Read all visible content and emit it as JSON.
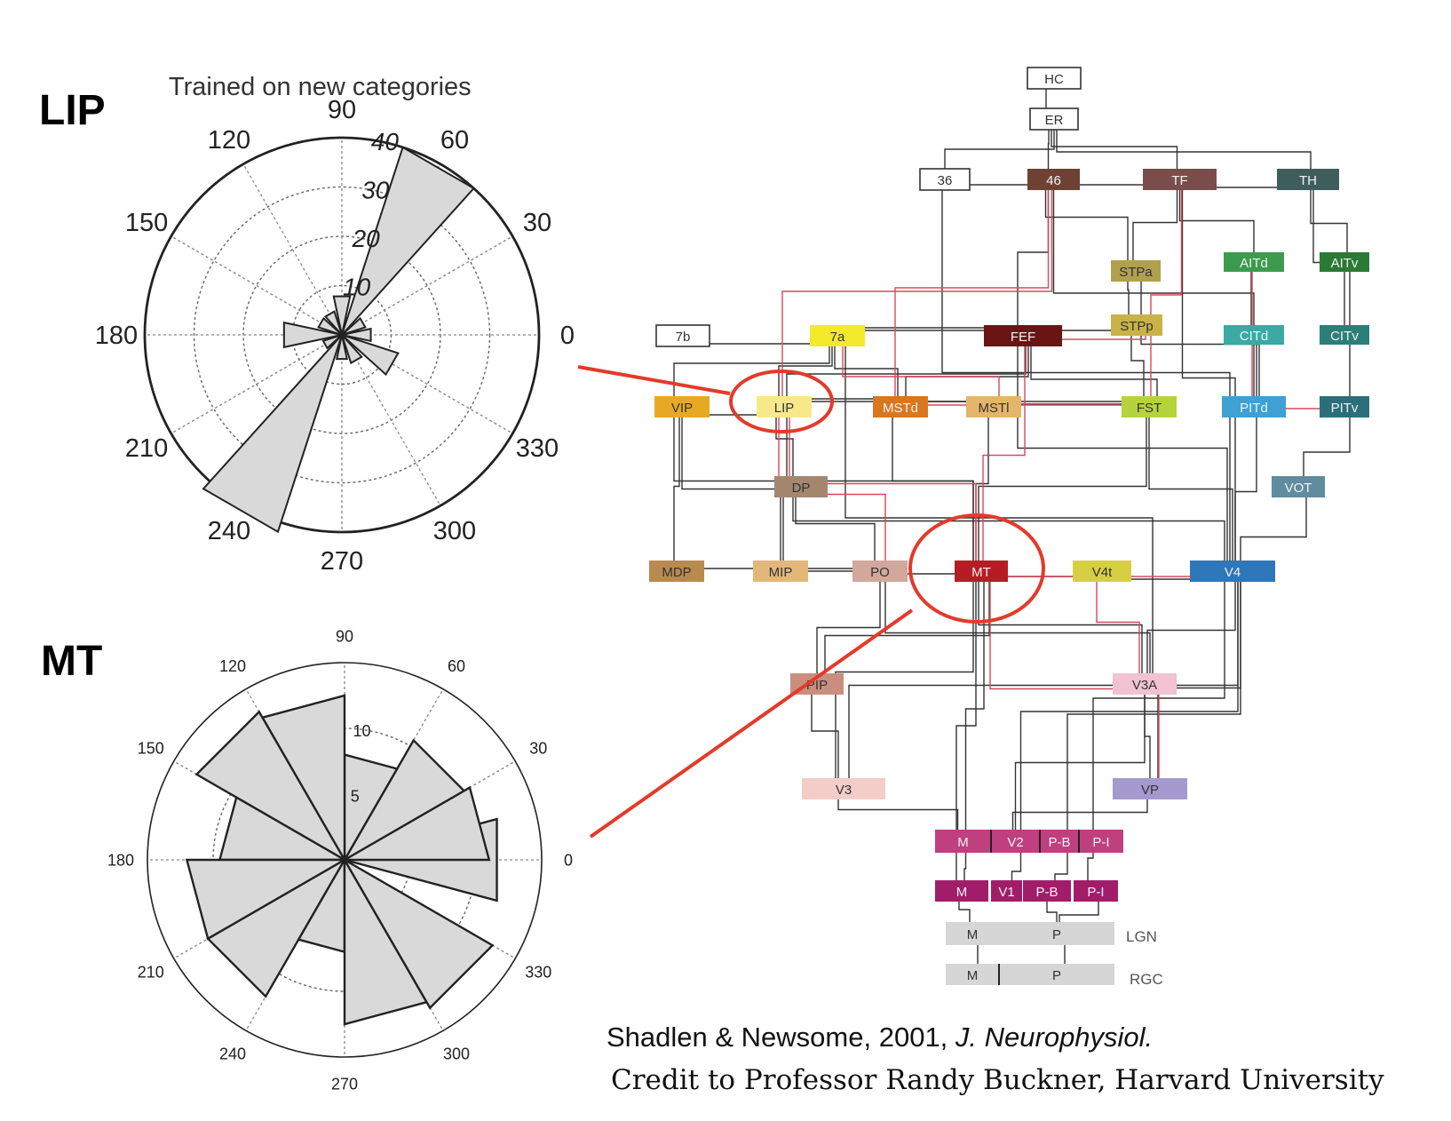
{
  "panels": {
    "lip": {
      "label": "LIP",
      "title": "Trained on new categories",
      "angle_labels": [
        "0",
        "30",
        "60",
        "90",
        "120",
        "150",
        "180",
        "210",
        "240",
        "270",
        "300",
        "330"
      ],
      "radial_labels": [
        "10",
        "20",
        "30",
        "40"
      ],
      "rmax": 40,
      "sectors": [
        {
          "angle": 0,
          "value": 6
        },
        {
          "angle": 30,
          "value": 5
        },
        {
          "angle": 60,
          "value": 40
        },
        {
          "angle": 90,
          "value": 8
        },
        {
          "angle": 120,
          "value": 5
        },
        {
          "angle": 150,
          "value": 5
        },
        {
          "angle": 180,
          "value": 12
        },
        {
          "angle": 210,
          "value": 4
        },
        {
          "angle": 240,
          "value": 42
        },
        {
          "angle": 270,
          "value": 5
        },
        {
          "angle": 300,
          "value": 6
        },
        {
          "angle": 330,
          "value": 12
        }
      ]
    },
    "mt": {
      "label": "MT",
      "angle_labels": [
        "0",
        "30",
        "60",
        "90",
        "120",
        "150",
        "180",
        "210",
        "240",
        "270",
        "300",
        "330"
      ],
      "radial_labels": [
        "5",
        "10"
      ],
      "rmax": 15,
      "sectors": [
        {
          "angle": 0,
          "value": 12
        },
        {
          "angle": 15,
          "value": 11
        },
        {
          "angle": 45,
          "value": 10.5
        },
        {
          "angle": 75,
          "value": 8
        },
        {
          "angle": 105,
          "value": 12.5
        },
        {
          "angle": 135,
          "value": 13
        },
        {
          "angle": 165,
          "value": 9.5
        },
        {
          "angle": 195,
          "value": 12
        },
        {
          "angle": 225,
          "value": 12
        },
        {
          "angle": 255,
          "value": 7
        },
        {
          "angle": 285,
          "value": 12.5
        },
        {
          "angle": 315,
          "value": 13
        }
      ]
    }
  },
  "network": {
    "nodes": [
      {
        "id": "HC",
        "label": "HC",
        "color": "#ffffff"
      },
      {
        "id": "ER",
        "label": "ER",
        "color": "#ffffff"
      },
      {
        "id": "36",
        "label": "36",
        "color": "#ffffff"
      },
      {
        "id": "46",
        "label": "46",
        "color": "#6e4233"
      },
      {
        "id": "TF",
        "label": "TF",
        "color": "#7a4d4d"
      },
      {
        "id": "TH",
        "label": "TH",
        "color": "#3e5e5c"
      },
      {
        "id": "STPa",
        "label": "STPa",
        "color": "#b0a04e"
      },
      {
        "id": "AITd",
        "label": "AITd",
        "color": "#3d9b4e"
      },
      {
        "id": "AITv",
        "label": "AITv",
        "color": "#2a7a35"
      },
      {
        "id": "7b",
        "label": "7b",
        "color": "#ffffff"
      },
      {
        "id": "7a",
        "label": "7a",
        "color": "#f2ea2a"
      },
      {
        "id": "FEF",
        "label": "FEF",
        "color": "#6b1414"
      },
      {
        "id": "STPp",
        "label": "STPp",
        "color": "#c9b247"
      },
      {
        "id": "CITd",
        "label": "CITd",
        "color": "#3ba9a4"
      },
      {
        "id": "CITv",
        "label": "CITv",
        "color": "#2c7e78"
      },
      {
        "id": "VIP",
        "label": "VIP",
        "color": "#e7a924"
      },
      {
        "id": "LIP",
        "label": "LIP",
        "color": "#f7e98a"
      },
      {
        "id": "MSTd",
        "label": "MSTd",
        "color": "#d9771f"
      },
      {
        "id": "MSTl",
        "label": "MSTl",
        "color": "#e4b56a"
      },
      {
        "id": "FST",
        "label": "FST",
        "color": "#b5d33d"
      },
      {
        "id": "PITd",
        "label": "PITd",
        "color": "#3fa0d3"
      },
      {
        "id": "PITv",
        "label": "PITv",
        "color": "#2c6f7a"
      },
      {
        "id": "DP",
        "label": "DP",
        "color": "#a58770"
      },
      {
        "id": "VOT",
        "label": "VOT",
        "color": "#5f8c9e"
      },
      {
        "id": "MDP",
        "label": "MDP",
        "color": "#b98a50"
      },
      {
        "id": "MIP",
        "label": "MIP",
        "color": "#e2b77a"
      },
      {
        "id": "PO",
        "label": "PO",
        "color": "#d1a89b"
      },
      {
        "id": "MT",
        "label": "MT",
        "color": "#b51d24"
      },
      {
        "id": "V4t",
        "label": "V4t",
        "color": "#d7cf43"
      },
      {
        "id": "V4",
        "label": "V4",
        "color": "#2d77ba"
      },
      {
        "id": "PIP",
        "label": "PIP",
        "color": "#c98e7e"
      },
      {
        "id": "V3A",
        "label": "V3A",
        "color": "#f0c2d2"
      },
      {
        "id": "V3",
        "label": "V3",
        "color": "#f3cdc8"
      },
      {
        "id": "VP",
        "label": "VP",
        "color": "#a49ad0"
      },
      {
        "id": "V2M",
        "label": "M",
        "color": "#bf3f7f"
      },
      {
        "id": "V2",
        "label": "V2",
        "color": "#bf3f7f"
      },
      {
        "id": "V2PB",
        "label": "P-B",
        "color": "#bf3f7f"
      },
      {
        "id": "V2PI",
        "label": "P-I",
        "color": "#bf3f7f"
      },
      {
        "id": "V1M",
        "label": "M",
        "color": "#a11d6a"
      },
      {
        "id": "V1",
        "label": "V1",
        "color": "#a11d6a"
      },
      {
        "id": "V1PB",
        "label": "P-B",
        "color": "#a11d6a"
      },
      {
        "id": "V1PI",
        "label": "P-I",
        "color": "#a11d6a"
      },
      {
        "id": "LGNM",
        "label": "M",
        "color": "#d6d6d6"
      },
      {
        "id": "LGNP",
        "label": "P",
        "color": "#d6d6d6"
      },
      {
        "id": "RGCM",
        "label": "M",
        "color": "#d6d6d6"
      },
      {
        "id": "RGCP",
        "label": "P",
        "color": "#d6d6d6"
      }
    ],
    "side_labels": {
      "lgn": "LGN",
      "rgc": "RGC"
    }
  },
  "footer": {
    "citation_main": "Shadlen & Newsome, 2001, ",
    "citation_journal": "J. Neurophysiol.",
    "credit": "Credit to Professor Randy Buckner, Harvard University"
  },
  "colors": {
    "accent": "#e23b2a",
    "sector_fill": "#d9d9d9",
    "grid": "#555555"
  }
}
